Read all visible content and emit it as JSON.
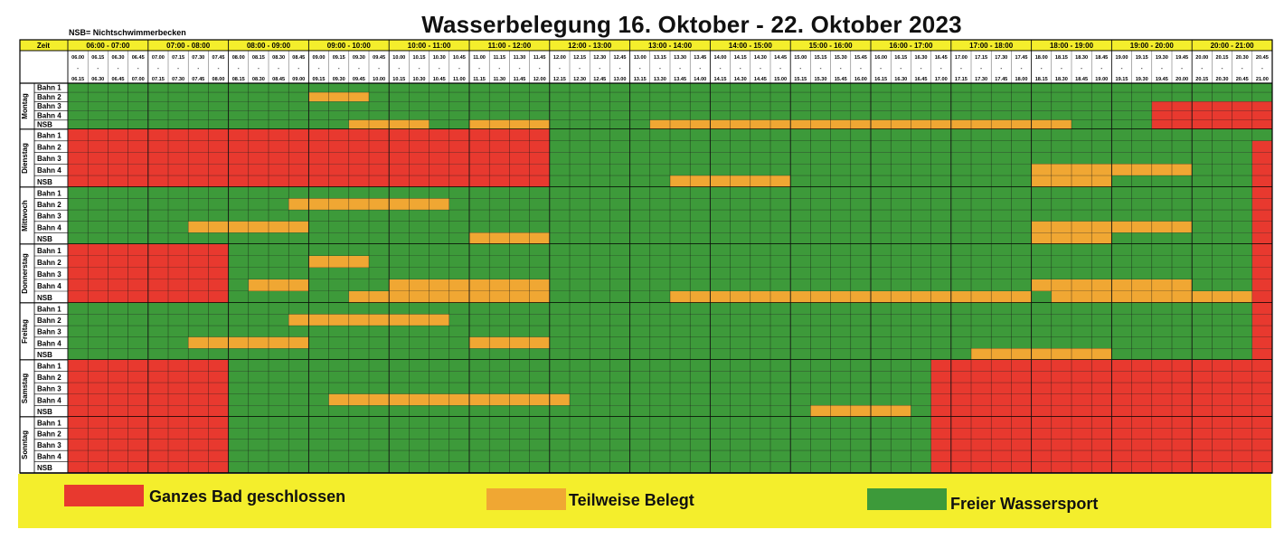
{
  "title": "Wasserbelegung 16. Oktober - 22. Oktober 2023",
  "nsb_note": "NSB= Nichtschwimmerbecken",
  "time_label": "Zeit",
  "hours": [
    "06:00 - 07:00",
    "07:00 - 08:00",
    "08:00 - 09:00",
    "09:00 - 10:00",
    "10:00 - 11:00",
    "11:00 - 12:00",
    "12:00 - 13:00",
    "13:00 - 14:00",
    "14:00 - 15:00",
    "15:00 - 16:00",
    "16:00 - 17:00",
    "17:00 - 18:00",
    "18:00 - 19:00",
    "19:00 - 20:00",
    "20:00 - 21:00"
  ],
  "slot_starts": [
    "06.00",
    "06.15",
    "06.30",
    "06.45",
    "07.00",
    "07.15",
    "07.30",
    "07.45",
    "08.00",
    "08.15",
    "08.30",
    "08.45",
    "09.00",
    "09.15",
    "09.30",
    "09.45",
    "10.00",
    "10.15",
    "10.30",
    "10.45",
    "11.00",
    "11.15",
    "11.30",
    "11.45",
    "12.00",
    "12.15",
    "12.30",
    "12.45",
    "13.00",
    "13.15",
    "13.30",
    "13.45",
    "14.00",
    "14.15",
    "14.30",
    "14.45",
    "15.00",
    "15.15",
    "15.30",
    "15.45",
    "16.00",
    "16.15",
    "16.30",
    "16.45",
    "17.00",
    "17.15",
    "17.30",
    "17.45",
    "18.00",
    "18.15",
    "18.30",
    "18.45",
    "19.00",
    "19.15",
    "19.30",
    "19.45",
    "20.00",
    "20.15",
    "20.30",
    "20.45"
  ],
  "slot_ends": [
    "06.15",
    "06.30",
    "06.45",
    "07.00",
    "07.15",
    "07.30",
    "07.45",
    "08.00",
    "08.15",
    "08.30",
    "08.45",
    "09.00",
    "09.15",
    "09.30",
    "09.45",
    "10.00",
    "10.15",
    "10.30",
    "10.45",
    "11.00",
    "11.15",
    "11.30",
    "11.45",
    "12.00",
    "12.15",
    "12.30",
    "12.45",
    "13.00",
    "13.15",
    "13.30",
    "13.45",
    "14.00",
    "14.15",
    "14.30",
    "14.45",
    "15.00",
    "15.15",
    "15.30",
    "15.45",
    "16.00",
    "16.15",
    "16.30",
    "16.45",
    "17.00",
    "17.15",
    "17.30",
    "17.45",
    "18.00",
    "18.15",
    "18.30",
    "18.45",
    "19.00",
    "19.15",
    "19.30",
    "19.45",
    "20.00",
    "20.15",
    "20.30",
    "20.45",
    "21.00"
  ],
  "row_labels": [
    "Bahn 1",
    "Bahn 2",
    "Bahn 3",
    "Bahn 4",
    "NSB"
  ],
  "days": [
    {
      "name": "Montag",
      "rows": [
        [
          [
            "G",
            0,
            60
          ]
        ],
        [
          [
            "G",
            0,
            12
          ],
          [
            "O",
            12,
            15
          ],
          [
            "G",
            15,
            60
          ]
        ],
        [
          [
            "G",
            0,
            54
          ],
          [
            "R",
            54,
            60
          ]
        ],
        [
          [
            "G",
            0,
            54
          ],
          [
            "R",
            54,
            60
          ]
        ],
        [
          [
            "G",
            0,
            14
          ],
          [
            "O",
            14,
            18
          ],
          [
            "G",
            18,
            20
          ],
          [
            "O",
            20,
            24
          ],
          [
            "G",
            24,
            29
          ],
          [
            "O",
            29,
            50
          ],
          [
            "G",
            50,
            54
          ],
          [
            "R",
            54,
            60
          ]
        ]
      ]
    },
    {
      "name": "Dienstag",
      "rows": [
        [
          [
            "R",
            0,
            24
          ],
          [
            "G",
            24,
            60
          ]
        ],
        [
          [
            "R",
            0,
            24
          ],
          [
            "G",
            24,
            59
          ],
          [
            "R",
            59,
            60
          ]
        ],
        [
          [
            "R",
            0,
            24
          ],
          [
            "G",
            24,
            59
          ],
          [
            "R",
            59,
            60
          ]
        ],
        [
          [
            "R",
            0,
            24
          ],
          [
            "G",
            24,
            48
          ],
          [
            "O",
            48,
            56
          ],
          [
            "G",
            56,
            59
          ],
          [
            "R",
            59,
            60
          ]
        ],
        [
          [
            "R",
            0,
            24
          ],
          [
            "G",
            24,
            30
          ],
          [
            "O",
            30,
            36
          ],
          [
            "G",
            36,
            48
          ],
          [
            "O",
            48,
            52
          ],
          [
            "G",
            52,
            59
          ],
          [
            "R",
            59,
            60
          ]
        ]
      ]
    },
    {
      "name": "Mittwoch",
      "rows": [
        [
          [
            "G",
            0,
            59
          ],
          [
            "R",
            59,
            60
          ]
        ],
        [
          [
            "G",
            0,
            11
          ],
          [
            "O",
            11,
            19
          ],
          [
            "G",
            19,
            59
          ],
          [
            "R",
            59,
            60
          ]
        ],
        [
          [
            "G",
            0,
            59
          ],
          [
            "R",
            59,
            60
          ]
        ],
        [
          [
            "G",
            0,
            6
          ],
          [
            "O",
            6,
            12
          ],
          [
            "G",
            12,
            48
          ],
          [
            "O",
            48,
            56
          ],
          [
            "G",
            56,
            59
          ],
          [
            "R",
            59,
            60
          ]
        ],
        [
          [
            "G",
            0,
            20
          ],
          [
            "O",
            20,
            24
          ],
          [
            "G",
            24,
            48
          ],
          [
            "O",
            48,
            52
          ],
          [
            "G",
            52,
            59
          ],
          [
            "R",
            59,
            60
          ]
        ]
      ]
    },
    {
      "name": "Donnerstag",
      "rows": [
        [
          [
            "R",
            0,
            8
          ],
          [
            "G",
            8,
            59
          ],
          [
            "R",
            59,
            60
          ]
        ],
        [
          [
            "R",
            0,
            8
          ],
          [
            "G",
            8,
            12
          ],
          [
            "O",
            12,
            15
          ],
          [
            "G",
            15,
            59
          ],
          [
            "R",
            59,
            60
          ]
        ],
        [
          [
            "R",
            0,
            8
          ],
          [
            "G",
            8,
            59
          ],
          [
            "R",
            59,
            60
          ]
        ],
        [
          [
            "R",
            0,
            8
          ],
          [
            "G",
            8,
            9
          ],
          [
            "O",
            9,
            12
          ],
          [
            "G",
            12,
            16
          ],
          [
            "O",
            16,
            24
          ],
          [
            "G",
            24,
            48
          ],
          [
            "O",
            48,
            56
          ],
          [
            "G",
            56,
            59
          ],
          [
            "R",
            59,
            60
          ]
        ],
        [
          [
            "R",
            0,
            8
          ],
          [
            "G",
            8,
            14
          ],
          [
            "O",
            14,
            24
          ],
          [
            "G",
            24,
            30
          ],
          [
            "O",
            30,
            48
          ],
          [
            "G",
            48,
            49
          ],
          [
            "O",
            49,
            59
          ],
          [
            "R",
            59,
            60
          ]
        ]
      ]
    },
    {
      "name": "Freitag",
      "rows": [
        [
          [
            "G",
            0,
            59
          ],
          [
            "R",
            59,
            60
          ]
        ],
        [
          [
            "G",
            0,
            11
          ],
          [
            "O",
            11,
            19
          ],
          [
            "G",
            19,
            59
          ],
          [
            "R",
            59,
            60
          ]
        ],
        [
          [
            "G",
            0,
            59
          ],
          [
            "R",
            59,
            60
          ]
        ],
        [
          [
            "G",
            0,
            6
          ],
          [
            "O",
            6,
            12
          ],
          [
            "G",
            12,
            20
          ],
          [
            "O",
            20,
            24
          ],
          [
            "G",
            24,
            59
          ],
          [
            "R",
            59,
            60
          ]
        ],
        [
          [
            "G",
            0,
            45
          ],
          [
            "O",
            45,
            52
          ],
          [
            "G",
            52,
            59
          ],
          [
            "R",
            59,
            60
          ]
        ]
      ]
    },
    {
      "name": "Samstag",
      "rows": [
        [
          [
            "R",
            0,
            8
          ],
          [
            "G",
            8,
            43
          ],
          [
            "R",
            43,
            60
          ]
        ],
        [
          [
            "R",
            0,
            8
          ],
          [
            "G",
            8,
            43
          ],
          [
            "R",
            43,
            60
          ]
        ],
        [
          [
            "R",
            0,
            8
          ],
          [
            "G",
            8,
            43
          ],
          [
            "R",
            43,
            60
          ]
        ],
        [
          [
            "R",
            0,
            8
          ],
          [
            "G",
            8,
            13
          ],
          [
            "O",
            13,
            25
          ],
          [
            "G",
            25,
            43
          ],
          [
            "R",
            43,
            60
          ]
        ],
        [
          [
            "R",
            0,
            8
          ],
          [
            "G",
            8,
            37
          ],
          [
            "O",
            37,
            42
          ],
          [
            "G",
            42,
            43
          ],
          [
            "R",
            43,
            60
          ]
        ]
      ]
    },
    {
      "name": "Sonntag",
      "rows": [
        [
          [
            "R",
            0,
            8
          ],
          [
            "G",
            8,
            43
          ],
          [
            "R",
            43,
            60
          ]
        ],
        [
          [
            "R",
            0,
            8
          ],
          [
            "G",
            8,
            43
          ],
          [
            "R",
            43,
            60
          ]
        ],
        [
          [
            "R",
            0,
            8
          ],
          [
            "G",
            8,
            43
          ],
          [
            "R",
            43,
            60
          ]
        ],
        [
          [
            "R",
            0,
            8
          ],
          [
            "G",
            8,
            43
          ],
          [
            "R",
            43,
            60
          ]
        ],
        [
          [
            "R",
            0,
            8
          ],
          [
            "G",
            8,
            43
          ],
          [
            "R",
            43,
            60
          ]
        ]
      ]
    }
  ],
  "legend": [
    {
      "key": "R",
      "label": "Ganzes Bad geschlossen",
      "color": "#e8392f"
    },
    {
      "key": "O",
      "label": "Teilweise Belegt",
      "color": "#f0a733"
    },
    {
      "key": "G",
      "label": "Freier Wassersport",
      "color": "#3d9a3a"
    }
  ],
  "colors": {
    "R": "#e8392f",
    "O": "#f0a733",
    "G": "#3d9a3a",
    "header_yellow": "#f4ee2c",
    "legend_bg": "#f4ee2c"
  }
}
